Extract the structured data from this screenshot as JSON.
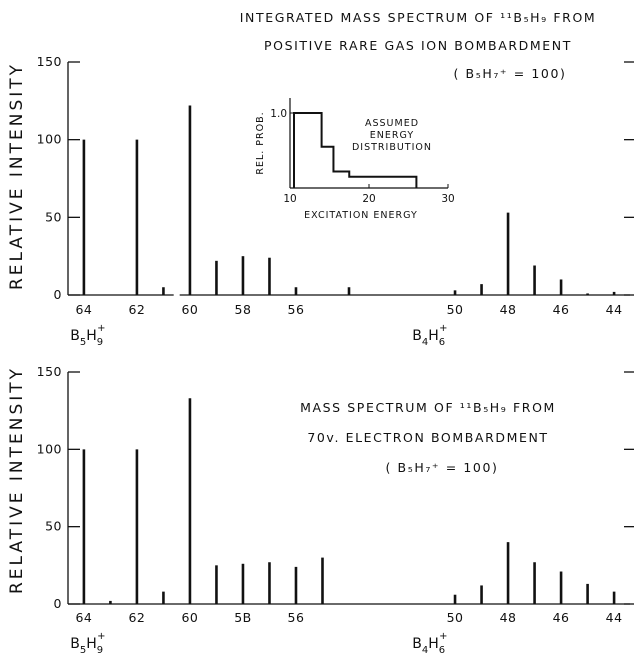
{
  "chart_data": [
    {
      "type": "bar",
      "title_lines": [
        "INTEGRATED MASS SPECTRUM OF ¹¹B₅H₉ FROM",
        "POSITIVE RARE GAS ION BOMBARDMENT"
      ],
      "normalization": "( B₅H₇⁺ = 100)",
      "ylabel": "RELATIVE INTENSITY",
      "ylim": [
        0,
        150
      ],
      "yticks": [
        0,
        50,
        100,
        150
      ],
      "xlim": [
        64.6,
        43.4
      ],
      "xaxis_reversed": true,
      "xticks": [
        "64",
        "62",
        "60",
        "58",
        "56",
        "50",
        "48",
        "46",
        "44"
      ],
      "xtick_positions": [
        64,
        62,
        60,
        58,
        56,
        50,
        48,
        46,
        44
      ],
      "x_axis_break_between": [
        61,
        60
      ],
      "ion_labels": [
        {
          "x": 64,
          "base": "B",
          "sub1": "5",
          "mid": "H",
          "sub2": "9",
          "sup": "+"
        },
        {
          "x": 51.1,
          "base": "B",
          "sub1": "4",
          "mid": "H",
          "sub2": "6",
          "sup": "+"
        }
      ],
      "x": [
        64,
        63,
        62,
        61,
        60,
        59,
        58,
        57,
        56,
        55,
        54,
        53,
        52,
        51,
        50,
        49,
        48,
        47,
        46,
        45,
        44
      ],
      "values": [
        100,
        0,
        100,
        5,
        122,
        22,
        25,
        24,
        5,
        0,
        5,
        0,
        0,
        0,
        3,
        7,
        53,
        19,
        10,
        1,
        2
      ],
      "inset": {
        "title_lines": [
          "ASSUMED",
          "ENERGY",
          "DISTRIBUTION"
        ],
        "xlabel": "EXCITATION ENERGY",
        "ylabel": "REL. PROB.",
        "xlim": [
          10,
          30
        ],
        "ylim": [
          0,
          1.2
        ],
        "xticks": [
          "10",
          "20",
          "30"
        ],
        "ytick_labels": [
          "1.0"
        ],
        "ytick_values": [
          1.0
        ],
        "steps": [
          {
            "x0": 10,
            "x1": 14,
            "y": 1.0
          },
          {
            "x0": 14,
            "x1": 15.5,
            "y": 0.55
          },
          {
            "x0": 15.5,
            "x1": 17.5,
            "y": 0.22
          },
          {
            "x0": 17.5,
            "x1": 26,
            "y": 0.15
          }
        ]
      }
    },
    {
      "type": "bar",
      "title_lines": [
        "MASS SPECTRUM OF ¹¹B₅H₉ FROM",
        "70v. ELECTRON BOMBARDMENT"
      ],
      "normalization": "( B₅H₇⁺ = 100)",
      "ylabel": "RELATIVE INTENSITY",
      "ylim": [
        0,
        150
      ],
      "yticks": [
        0,
        50,
        100,
        150
      ],
      "xlim": [
        64.6,
        43.4
      ],
      "xaxis_reversed": true,
      "xticks": [
        "64",
        "62",
        "60",
        "5B",
        "56",
        "50",
        "48",
        "46",
        "44"
      ],
      "xtick_positions": [
        64,
        62,
        60,
        58,
        56,
        50,
        48,
        46,
        44
      ],
      "ion_labels": [
        {
          "x": 64,
          "base": "B",
          "sub1": "5",
          "mid": "H",
          "sub2": "9",
          "sup": "+"
        },
        {
          "x": 51.1,
          "base": "B",
          "sub1": "4",
          "mid": "H",
          "sub2": "6",
          "sup": "+"
        }
      ],
      "x": [
        64,
        63,
        62,
        61,
        60,
        59,
        58,
        57,
        56,
        55,
        54,
        53,
        52,
        51,
        50,
        49,
        48,
        47,
        46,
        45,
        44
      ],
      "values": [
        100,
        2,
        100,
        8,
        133,
        25,
        26,
        27,
        24,
        30,
        0,
        0,
        0,
        0,
        6,
        12,
        40,
        27,
        21,
        13,
        8
      ]
    }
  ]
}
